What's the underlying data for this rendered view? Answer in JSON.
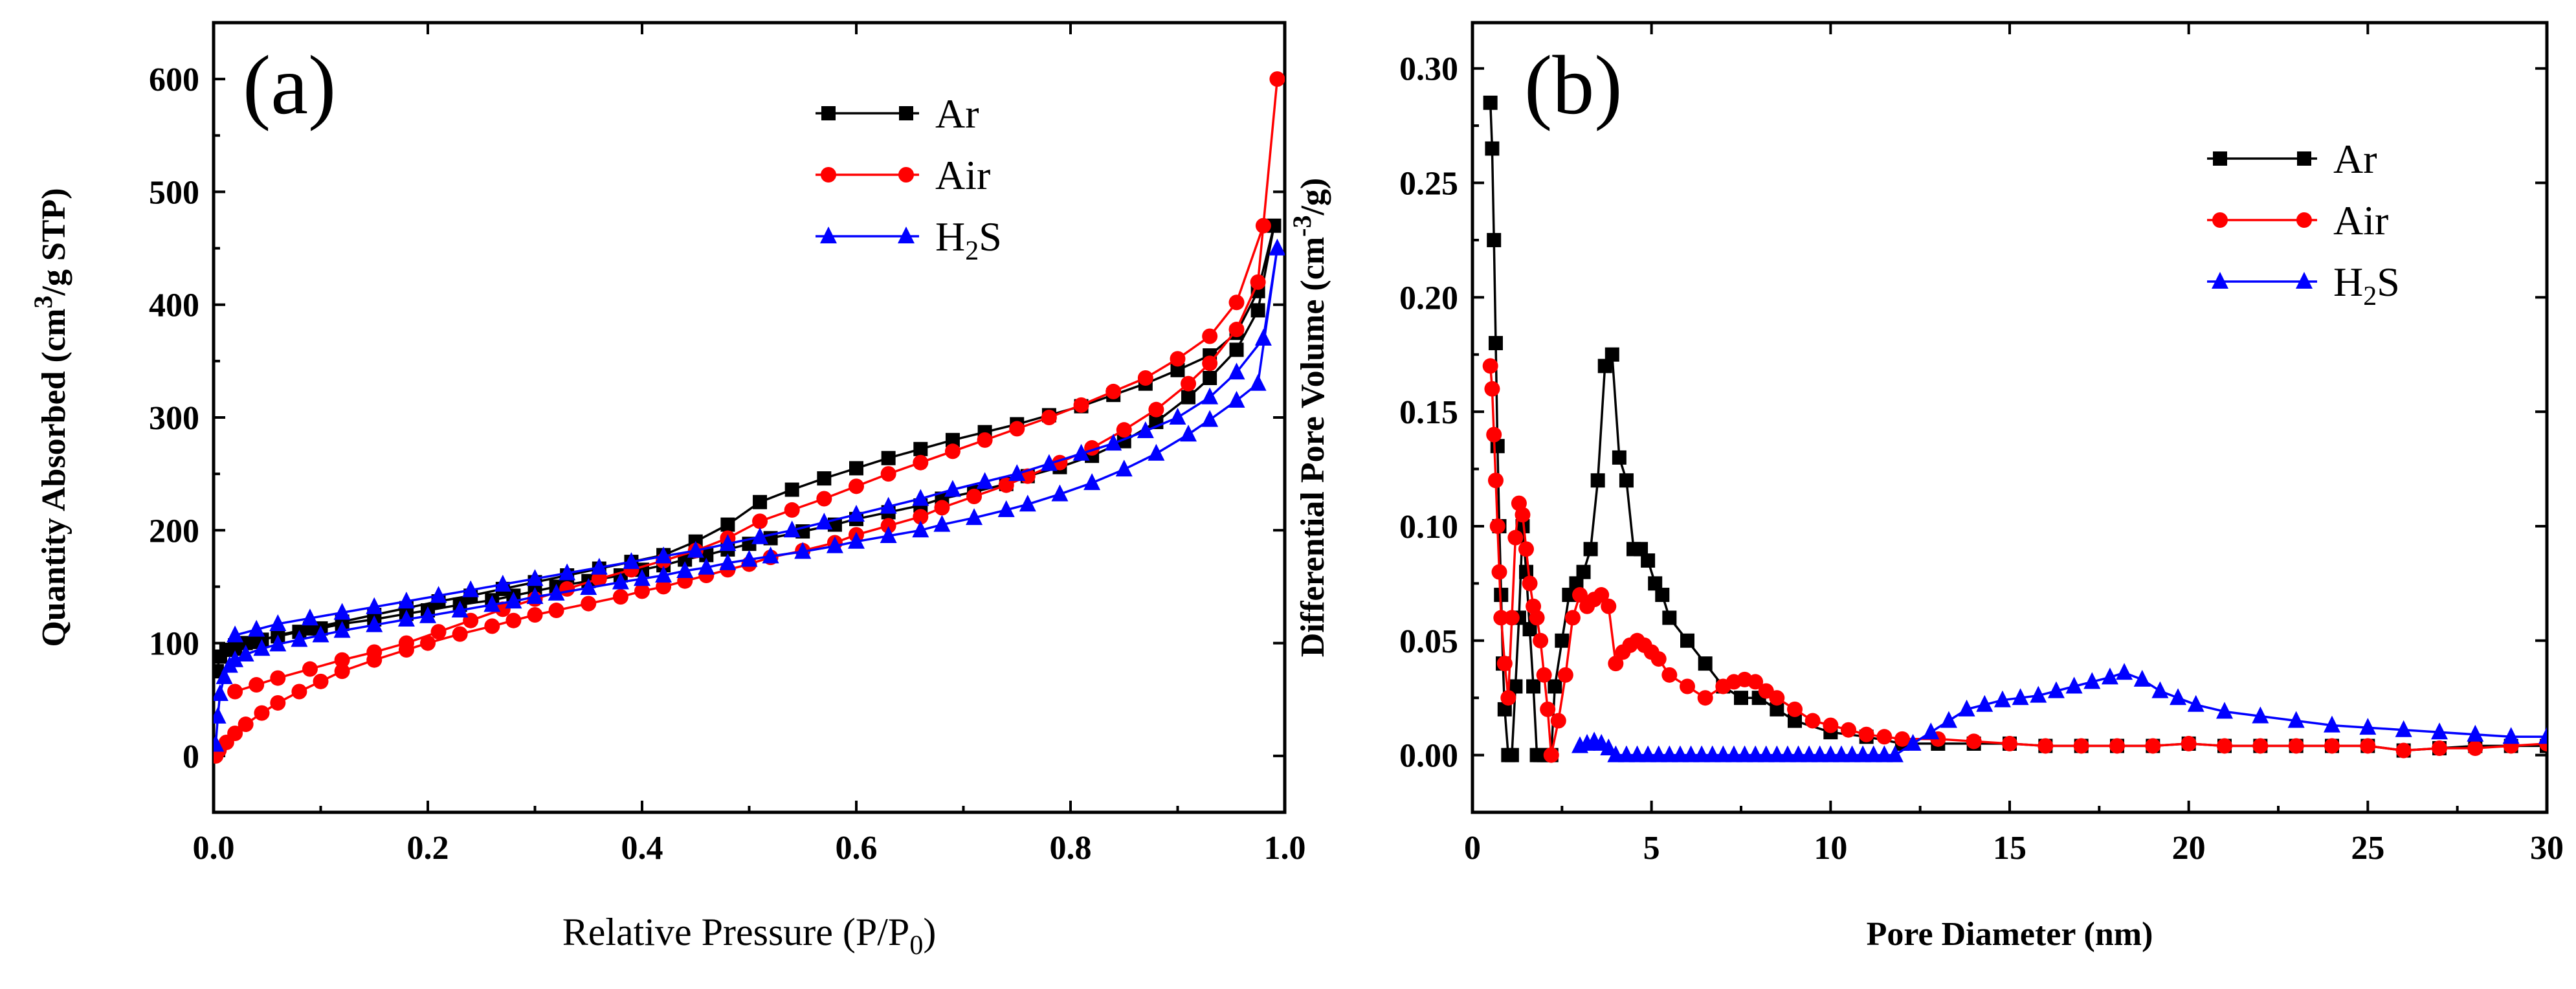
{
  "chart_data": [
    {
      "panel_label": "(a)",
      "type": "line",
      "xlabel_main": "Relative Pressure (P/P",
      "xlabel_sub": "0",
      "xlabel_end": ")",
      "ylabel_main": "Quantity Absorbed (cm",
      "ylabel_sup": "3",
      "ylabel_end": "/g STP)",
      "xlim": [
        0,
        1.0
      ],
      "ylim": [
        -50,
        650
      ],
      "xticks": [
        0.0,
        0.2,
        0.4,
        0.6,
        0.8,
        1.0
      ],
      "xtick_labels": [
        "0.0",
        "0.2",
        "0.4",
        "0.6",
        "0.8",
        "1.0"
      ],
      "yticks": [
        0,
        100,
        200,
        300,
        400,
        500,
        600
      ],
      "ytick_labels": [
        "0",
        "100",
        "200",
        "300",
        "400",
        "500",
        "600"
      ],
      "legend_position": "top-right",
      "series": [
        {
          "name": "Ar",
          "label_main": "Ar",
          "label_sub": "",
          "label_end": "",
          "color": "#000000",
          "marker": "square",
          "x": [
            0.003,
            0.006,
            0.012,
            0.02,
            0.03,
            0.045,
            0.06,
            0.08,
            0.1,
            0.12,
            0.15,
            0.18,
            0.2,
            0.23,
            0.26,
            0.28,
            0.3,
            0.32,
            0.35,
            0.38,
            0.4,
            0.42,
            0.44,
            0.46,
            0.48,
            0.5,
            0.52,
            0.55,
            0.58,
            0.6,
            0.63,
            0.66,
            0.68,
            0.71,
            0.74,
            0.76,
            0.79,
            0.82,
            0.85,
            0.88,
            0.91,
            0.93,
            0.955,
            0.975,
            0.99,
            0.975,
            0.955,
            0.93,
            0.9,
            0.87,
            0.84,
            0.81,
            0.78,
            0.75,
            0.72,
            0.69,
            0.66,
            0.63,
            0.6,
            0.57,
            0.54,
            0.51,
            0.48,
            0.45,
            0.42,
            0.39,
            0.36,
            0.33,
            0.3,
            0.27,
            0.24,
            0.21,
            0.18,
            0.15,
            0.12,
            0.09,
            0.06,
            0.04,
            0.02
          ],
          "y": [
            75,
            88,
            94,
            98,
            100,
            103,
            106,
            110,
            113,
            117,
            121,
            126,
            129,
            134,
            138,
            142,
            146,
            150,
            155,
            160,
            165,
            169,
            174,
            178,
            183,
            188,
            193,
            199,
            205,
            210,
            216,
            222,
            228,
            234,
            241,
            248,
            256,
            266,
            279,
            296,
            318,
            335,
            360,
            395,
            470,
            412,
            375,
            355,
            342,
            330,
            320,
            310,
            302,
            294,
            287,
            280,
            272,
            264,
            255,
            246,
            236,
            225,
            205,
            190,
            178,
            172,
            166,
            160,
            154,
            148,
            142,
            137,
            131,
            125,
            119,
            113,
            107,
            101,
            95
          ]
        },
        {
          "name": "Air",
          "label_main": "Air",
          "label_sub": "",
          "label_end": "",
          "color": "#ff0000",
          "marker": "circle",
          "x": [
            0.002,
            0.005,
            0.012,
            0.02,
            0.03,
            0.045,
            0.06,
            0.08,
            0.1,
            0.12,
            0.15,
            0.18,
            0.2,
            0.23,
            0.26,
            0.28,
            0.3,
            0.32,
            0.35,
            0.38,
            0.4,
            0.42,
            0.44,
            0.46,
            0.48,
            0.5,
            0.52,
            0.55,
            0.58,
            0.6,
            0.63,
            0.66,
            0.68,
            0.71,
            0.74,
            0.76,
            0.79,
            0.82,
            0.85,
            0.88,
            0.91,
            0.93,
            0.955,
            0.975,
            0.993,
            0.98,
            0.955,
            0.93,
            0.9,
            0.87,
            0.84,
            0.81,
            0.78,
            0.75,
            0.72,
            0.69,
            0.66,
            0.63,
            0.6,
            0.57,
            0.54,
            0.51,
            0.48,
            0.45,
            0.42,
            0.39,
            0.36,
            0.33,
            0.3,
            0.27,
            0.24,
            0.21,
            0.18,
            0.15,
            0.12,
            0.09,
            0.06,
            0.04,
            0.02
          ],
          "y": [
            0,
            5,
            12,
            20,
            28,
            38,
            47,
            57,
            66,
            75,
            85,
            94,
            100,
            108,
            115,
            120,
            125,
            129,
            135,
            141,
            146,
            150,
            155,
            160,
            165,
            170,
            176,
            182,
            189,
            196,
            204,
            212,
            220,
            230,
            240,
            248,
            260,
            273,
            289,
            307,
            330,
            348,
            378,
            420,
            600,
            470,
            402,
            372,
            352,
            335,
            323,
            311,
            300,
            290,
            280,
            270,
            260,
            250,
            239,
            228,
            218,
            208,
            193,
            182,
            173,
            165,
            157,
            148,
            139,
            130,
            120,
            110,
            100,
            92,
            85,
            77,
            69,
            63,
            57
          ]
        },
        {
          "name": "H2S",
          "label_main": "H",
          "label_sub": "2",
          "label_end": "S",
          "color": "#0000ff",
          "marker": "triangle",
          "x": [
            0.002,
            0.004,
            0.006,
            0.01,
            0.015,
            0.02,
            0.03,
            0.045,
            0.06,
            0.08,
            0.1,
            0.12,
            0.15,
            0.18,
            0.2,
            0.23,
            0.26,
            0.28,
            0.3,
            0.32,
            0.35,
            0.38,
            0.4,
            0.42,
            0.44,
            0.46,
            0.48,
            0.5,
            0.52,
            0.55,
            0.58,
            0.6,
            0.63,
            0.66,
            0.68,
            0.71,
            0.74,
            0.76,
            0.79,
            0.82,
            0.85,
            0.88,
            0.91,
            0.93,
            0.955,
            0.975,
            0.993,
            0.98,
            0.955,
            0.93,
            0.9,
            0.87,
            0.84,
            0.81,
            0.78,
            0.75,
            0.72,
            0.69,
            0.66,
            0.63,
            0.6,
            0.57,
            0.54,
            0.51,
            0.48,
            0.45,
            0.42,
            0.39,
            0.36,
            0.33,
            0.3,
            0.27,
            0.24,
            0.21,
            0.18,
            0.15,
            0.12,
            0.09,
            0.06,
            0.04,
            0.02
          ],
          "y": [
            10,
            35,
            55,
            70,
            80,
            85,
            90,
            95,
            99,
            103,
            107,
            111,
            116,
            121,
            124,
            129,
            134,
            137,
            141,
            144,
            149,
            154,
            157,
            160,
            164,
            167,
            171,
            174,
            177,
            181,
            186,
            190,
            195,
            200,
            205,
            211,
            218,
            223,
            232,
            242,
            254,
            268,
            285,
            298,
            315,
            330,
            450,
            370,
            340,
            318,
            300,
            288,
            277,
            268,
            259,
            250,
            243,
            236,
            228,
            221,
            214,
            207,
            200,
            194,
            188,
            182,
            177,
            172,
            167,
            162,
            157,
            152,
            147,
            142,
            137,
            132,
            127,
            122,
            117,
            112,
            107
          ]
        }
      ]
    },
    {
      "panel_label": "(b)",
      "type": "line",
      "xlabel": "Pore Diameter (nm)",
      "ylabel_main": "Differential Pore Volume (cm",
      "ylabel_sup": "-3",
      "ylabel_end": "/g)",
      "xlim": [
        0,
        30
      ],
      "ylim": [
        -0.025,
        0.32
      ],
      "xticks": [
        0,
        5,
        10,
        15,
        20,
        25,
        30
      ],
      "xtick_labels": [
        "0",
        "5",
        "10",
        "15",
        "20",
        "25",
        "30"
      ],
      "yticks": [
        0.0,
        0.05,
        0.1,
        0.15,
        0.2,
        0.25,
        0.3
      ],
      "ytick_labels": [
        "0.00",
        "0.05",
        "0.10",
        "0.15",
        "0.20",
        "0.25",
        "0.30"
      ],
      "legend_position": "top-right",
      "series": [
        {
          "name": "Ar",
          "label_main": "Ar",
          "label_sub": "",
          "label_end": "",
          "color": "#000000",
          "marker": "square",
          "x": [
            0.5,
            0.55,
            0.6,
            0.65,
            0.7,
            0.75,
            0.8,
            0.85,
            0.9,
            1.0,
            1.1,
            1.2,
            1.3,
            1.4,
            1.5,
            1.6,
            1.7,
            1.8,
            1.9,
            2.0,
            2.1,
            2.2,
            2.3,
            2.5,
            2.7,
            2.9,
            3.1,
            3.3,
            3.5,
            3.7,
            3.9,
            4.1,
            4.3,
            4.5,
            4.7,
            4.9,
            5.1,
            5.3,
            5.5,
            6.0,
            6.5,
            7.0,
            7.5,
            8.0,
            8.5,
            9.0,
            10.0,
            11.0,
            12.0,
            13.0,
            14.0,
            15.0,
            16.0,
            17.0,
            18.0,
            19.0,
            20.0,
            21.0,
            22.0,
            23.0,
            24.0,
            25.0,
            26.0,
            27.0,
            28.0,
            29.0,
            30.0
          ],
          "y": [
            0.285,
            0.265,
            0.225,
            0.18,
            0.135,
            0.1,
            0.07,
            0.04,
            0.02,
            0.0,
            0.0,
            0.03,
            0.06,
            0.1,
            0.08,
            0.055,
            0.03,
            0.0,
            0.0,
            0.0,
            0.0,
            0.0,
            0.03,
            0.05,
            0.07,
            0.075,
            0.08,
            0.09,
            0.12,
            0.17,
            0.175,
            0.13,
            0.12,
            0.09,
            0.09,
            0.085,
            0.075,
            0.07,
            0.06,
            0.05,
            0.04,
            0.03,
            0.025,
            0.025,
            0.02,
            0.015,
            0.01,
            0.008,
            0.005,
            0.005,
            0.005,
            0.005,
            0.004,
            0.004,
            0.004,
            0.004,
            0.005,
            0.004,
            0.004,
            0.004,
            0.004,
            0.004,
            0.002,
            0.003,
            0.004,
            0.004,
            0.004
          ]
        },
        {
          "name": "Air",
          "label_main": "Air",
          "label_sub": "",
          "label_end": "",
          "color": "#ff0000",
          "marker": "circle",
          "x": [
            0.5,
            0.55,
            0.6,
            0.65,
            0.7,
            0.75,
            0.8,
            0.9,
            1.0,
            1.1,
            1.2,
            1.3,
            1.4,
            1.5,
            1.6,
            1.7,
            1.8,
            1.9,
            2.0,
            2.1,
            2.2,
            2.4,
            2.6,
            2.8,
            3.0,
            3.2,
            3.4,
            3.6,
            3.8,
            4.0,
            4.2,
            4.4,
            4.6,
            4.8,
            5.0,
            5.2,
            5.5,
            6.0,
            6.5,
            7.0,
            7.3,
            7.6,
            7.9,
            8.2,
            8.5,
            9.0,
            9.5,
            10.0,
            10.5,
            11.0,
            11.5,
            12.0,
            13.0,
            14.0,
            15.0,
            16.0,
            17.0,
            18.0,
            19.0,
            20.0,
            21.0,
            22.0,
            23.0,
            24.0,
            25.0,
            26.0,
            27.0,
            28.0,
            29.0,
            30.0
          ],
          "y": [
            0.17,
            0.16,
            0.14,
            0.12,
            0.1,
            0.08,
            0.06,
            0.04,
            0.025,
            0.06,
            0.095,
            0.11,
            0.105,
            0.09,
            0.075,
            0.065,
            0.06,
            0.05,
            0.035,
            0.02,
            0.0,
            0.015,
            0.035,
            0.06,
            0.07,
            0.065,
            0.068,
            0.07,
            0.065,
            0.04,
            0.045,
            0.048,
            0.05,
            0.048,
            0.045,
            0.042,
            0.035,
            0.03,
            0.025,
            0.03,
            0.032,
            0.033,
            0.032,
            0.028,
            0.025,
            0.02,
            0.015,
            0.013,
            0.011,
            0.009,
            0.008,
            0.007,
            0.007,
            0.006,
            0.005,
            0.004,
            0.004,
            0.004,
            0.004,
            0.005,
            0.004,
            0.004,
            0.004,
            0.004,
            0.004,
            0.002,
            0.003,
            0.003,
            0.004,
            0.005
          ]
        },
        {
          "name": "H2S",
          "label_main": "H",
          "label_sub": "2",
          "label_end": "S",
          "color": "#0000ff",
          "marker": "triangle",
          "x": [
            3.0,
            3.2,
            3.4,
            3.6,
            3.8,
            4.0,
            4.3,
            4.6,
            4.9,
            5.2,
            5.5,
            5.8,
            6.1,
            6.4,
            6.7,
            7.0,
            7.3,
            7.6,
            7.9,
            8.2,
            8.5,
            8.8,
            9.1,
            9.4,
            9.7,
            10.0,
            10.3,
            10.6,
            10.9,
            11.2,
            11.5,
            11.8,
            12.3,
            12.8,
            13.3,
            13.8,
            14.3,
            14.8,
            15.3,
            15.8,
            16.3,
            16.8,
            17.3,
            17.8,
            18.2,
            18.7,
            19.2,
            19.7,
            20.2,
            21.0,
            22.0,
            23.0,
            24.0,
            25.0,
            26.0,
            27.0,
            28.0,
            29.0,
            30.0
          ],
          "y": [
            0.004,
            0.005,
            0.006,
            0.005,
            0.003,
            0.0,
            0.0,
            0.0,
            0.0,
            0.0,
            0.0,
            0.0,
            0.0,
            0.0,
            0.0,
            0.0,
            0.0,
            0.0,
            0.0,
            0.0,
            0.0,
            0.0,
            0.0,
            0.0,
            0.0,
            0.0,
            0.0,
            0.0,
            0.0,
            0.0,
            0.0,
            0.0,
            0.005,
            0.01,
            0.015,
            0.02,
            0.022,
            0.024,
            0.025,
            0.026,
            0.028,
            0.03,
            0.032,
            0.034,
            0.036,
            0.033,
            0.028,
            0.025,
            0.022,
            0.019,
            0.017,
            0.015,
            0.013,
            0.012,
            0.011,
            0.01,
            0.009,
            0.008,
            0.008
          ]
        }
      ]
    }
  ]
}
